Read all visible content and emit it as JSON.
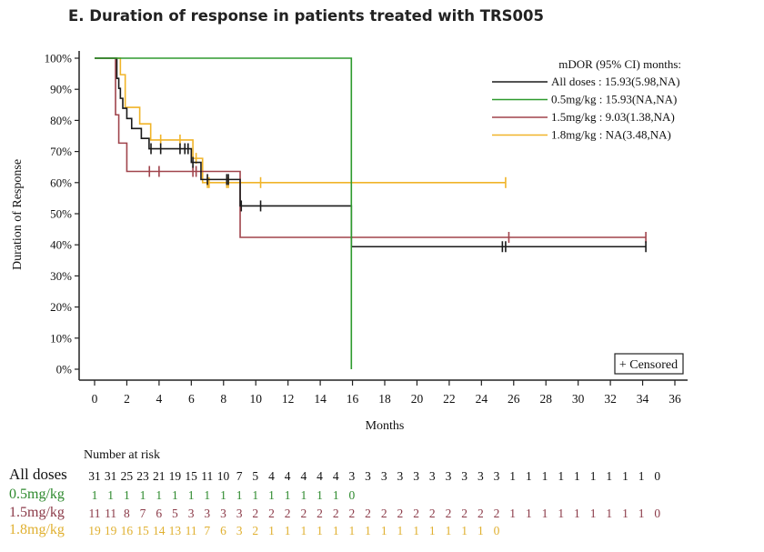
{
  "chart_data": {
    "type": "line",
    "subtype": "kaplan-meier",
    "title": "E. Duration of response in patients treated with TRS005",
    "xlabel": "Months",
    "ylabel": "Duration of Response",
    "xlim": [
      0,
      36
    ],
    "ylim": [
      0,
      100
    ],
    "x_ticks": [
      "0",
      "2",
      "4",
      "6",
      "8",
      "10",
      "12",
      "14",
      "16",
      "18",
      "20",
      "22",
      "24",
      "26",
      "28",
      "30",
      "32",
      "34",
      "36"
    ],
    "y_ticks": [
      "0%",
      "10%",
      "20%",
      "30%",
      "40%",
      "50%",
      "60%",
      "70%",
      "80%",
      "90%",
      "100%"
    ],
    "grid": false,
    "legend": {
      "title": "mDOR (95% CI) months:",
      "position": "top-right",
      "entries": [
        {
          "label": "All doses : 15.93(5.98,NA)",
          "color": "#1a1a1a"
        },
        {
          "label": "0.5mg/kg : 15.93(NA,NA)",
          "color": "#2e9a2e"
        },
        {
          "label": "1.5mg/kg : 9.03(1.38,NA)",
          "color": "#a0444c"
        },
        {
          "label": "1.8mg/kg : NA(3.48,NA)",
          "color": "#f0b429"
        }
      ]
    },
    "censored_legend": "+ Censored",
    "series": [
      {
        "name": "All doses",
        "color": "#1a1a1a",
        "steps": [
          [
            0,
            100
          ],
          [
            1.38,
            93.5
          ],
          [
            1.5,
            90.3
          ],
          [
            1.6,
            87.1
          ],
          [
            1.75,
            83.9
          ],
          [
            2.0,
            80.6
          ],
          [
            2.3,
            77.4
          ],
          [
            2.9,
            74.2
          ],
          [
            3.38,
            70.9
          ],
          [
            6.0,
            66.5
          ],
          [
            6.6,
            61.0
          ],
          [
            9.03,
            52.5
          ],
          [
            15.93,
            39.4
          ],
          [
            34.2,
            39.4
          ]
        ],
        "censored": [
          3.5,
          4.1,
          5.3,
          5.6,
          5.8,
          6.1,
          7.0,
          8.2,
          8.3,
          9.1,
          10.3,
          25.3,
          25.5,
          34.2
        ]
      },
      {
        "name": "0.5mg/kg",
        "color": "#2e9a2e",
        "steps": [
          [
            0,
            100
          ],
          [
            15.93,
            100
          ],
          [
            15.93,
            0
          ]
        ],
        "censored": []
      },
      {
        "name": "1.5mg/kg",
        "color": "#a0444c",
        "steps": [
          [
            0,
            100
          ],
          [
            1.2,
            100
          ],
          [
            1.3,
            81.8
          ],
          [
            1.5,
            72.7
          ],
          [
            2.0,
            63.6
          ],
          [
            9.03,
            42.4
          ],
          [
            34.2,
            42.4
          ]
        ],
        "censored": [
          3.4,
          4.0,
          6.1,
          6.3,
          25.7,
          34.2
        ]
      },
      {
        "name": "1.8mg/kg",
        "color": "#f0b429",
        "steps": [
          [
            0,
            100
          ],
          [
            1.5,
            100
          ],
          [
            1.6,
            94.7
          ],
          [
            1.9,
            84.2
          ],
          [
            2.8,
            78.9
          ],
          [
            3.48,
            73.7
          ],
          [
            6.1,
            67.8
          ],
          [
            6.7,
            60.0
          ],
          [
            25.5,
            60.0
          ]
        ],
        "censored": [
          4.1,
          5.3,
          6.3,
          7.0,
          7.1,
          8.2,
          8.3,
          10.3,
          25.5
        ]
      }
    ],
    "number_at_risk": {
      "header": "Number at risk",
      "rows": [
        {
          "label": "All doses",
          "color": "#111111",
          "values": [
            "31",
            "31",
            "25",
            "23",
            "21",
            "19",
            "15",
            "11",
            "10",
            "7",
            "5",
            "4",
            "4",
            "4",
            "4",
            "4",
            "3",
            "3",
            "3",
            "3",
            "3",
            "3",
            "3",
            "3",
            "3",
            "3",
            "1",
            "1",
            "1",
            "1",
            "1",
            "1",
            "1",
            "1",
            "1",
            "0"
          ]
        },
        {
          "label": "0.5mg/kg",
          "color": "#2e8a2e",
          "values": [
            "1",
            "1",
            "1",
            "1",
            "1",
            "1",
            "1",
            "1",
            "1",
            "1",
            "1",
            "1",
            "1",
            "1",
            "1",
            "1",
            "0"
          ]
        },
        {
          "label": "1.5mg/kg",
          "color": "#8b3a48",
          "values": [
            "11",
            "11",
            "8",
            "7",
            "6",
            "5",
            "3",
            "3",
            "3",
            "3",
            "2",
            "2",
            "2",
            "2",
            "2",
            "2",
            "2",
            "2",
            "2",
            "2",
            "2",
            "2",
            "2",
            "2",
            "2",
            "2",
            "1",
            "1",
            "1",
            "1",
            "1",
            "1",
            "1",
            "1",
            "1",
            "0"
          ]
        },
        {
          "label": "1.8mg/kg",
          "color": "#e0b030",
          "values": [
            "19",
            "19",
            "16",
            "15",
            "14",
            "13",
            "11",
            "7",
            "6",
            "3",
            "2",
            "1",
            "1",
            "1",
            "1",
            "1",
            "1",
            "1",
            "1",
            "1",
            "1",
            "1",
            "1",
            "1",
            "1",
            "0"
          ]
        }
      ]
    }
  }
}
